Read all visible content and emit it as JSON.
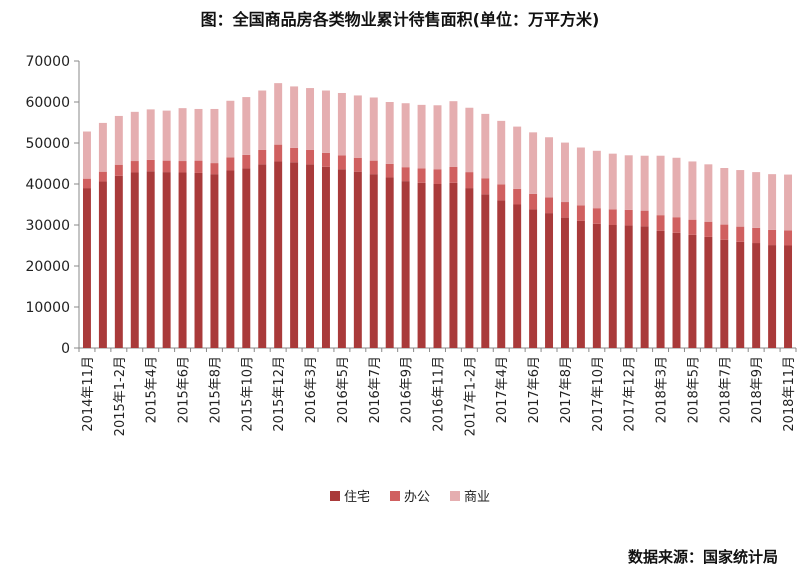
{
  "chart_data": {
    "type": "bar",
    "stacked": true,
    "title": "图：全国商品房各类物业累计待售面积(单位：万平方米)",
    "source": "数据来源：国家统计局",
    "ylim": [
      0,
      70000
    ],
    "yticks": [
      0,
      10000,
      20000,
      30000,
      40000,
      50000,
      60000,
      70000
    ],
    "xticks": [
      "2014年11月",
      "2015年1-2月",
      "2015年4月",
      "2015年6月",
      "2015年8月",
      "2015年10月",
      "2015年12月",
      "2016年3月",
      "2016年5月",
      "2016年7月",
      "2016年9月",
      "2016年11月",
      "2017年1-2月",
      "2017年4月",
      "2017年6月",
      "2017年8月",
      "2017年10月",
      "2017年12月",
      "2018年3月",
      "2018年5月",
      "2018年7月",
      "2018年9月",
      "2018年11月"
    ],
    "grid": false,
    "legend_position": "bottom",
    "categories": [
      "2014年11月",
      "2014年12月",
      "2015年1-2月",
      "2015年3月",
      "2015年4月",
      "2015年5月",
      "2015年6月",
      "2015年7月",
      "2015年8月",
      "2015年9月",
      "2015年10月",
      "2015年11月",
      "2015年12月",
      "2016年1-2月",
      "2016年3月",
      "2016年4月",
      "2016年5月",
      "2016年6月",
      "2016年7月",
      "2016年8月",
      "2016年9月",
      "2016年10月",
      "2016年11月",
      "2016年12月",
      "2017年1-2月",
      "2017年3月",
      "2017年4月",
      "2017年5月",
      "2017年6月",
      "2017年7月",
      "2017年8月",
      "2017年9月",
      "2017年10月",
      "2017年11月",
      "2017年12月",
      "2018年1-2月",
      "2018年3月",
      "2018年4月",
      "2018年5月",
      "2018年6月",
      "2018年7月",
      "2018年8月",
      "2018年9月",
      "2018年10月",
      "2018年11月"
    ],
    "series": [
      {
        "name": "住宅",
        "color": "#a93a3a",
        "values": [
          39000,
          40600,
          42000,
          42800,
          43100,
          42900,
          42800,
          42700,
          42400,
          43300,
          43800,
          44800,
          45500,
          45300,
          44800,
          44200,
          43600,
          43000,
          42400,
          41600,
          40700,
          40300,
          40000,
          40300,
          39000,
          37500,
          36000,
          35000,
          33800,
          32900,
          31800,
          31000,
          30300,
          30000,
          29900,
          29700,
          28600,
          28100,
          27600,
          27100,
          26400,
          25900,
          25600,
          25100,
          25000
        ]
      },
      {
        "name": "办公",
        "color": "#d06060",
        "values": [
          2300,
          2400,
          2700,
          2800,
          2800,
          2800,
          2800,
          3000,
          2700,
          3200,
          3300,
          3500,
          4100,
          3500,
          3500,
          3400,
          3400,
          3400,
          3300,
          3300,
          3400,
          3500,
          3600,
          3900,
          3900,
          3900,
          3900,
          3800,
          3800,
          3800,
          3800,
          3800,
          3800,
          3800,
          3800,
          3800,
          3800,
          3800,
          3700,
          3700,
          3700,
          3700,
          3700,
          3700,
          3700
        ]
      },
      {
        "name": "商业",
        "color": "#e5aeb0",
        "values": [
          11500,
          11900,
          11900,
          12000,
          12300,
          12200,
          12900,
          12600,
          13200,
          13800,
          14100,
          14500,
          15000,
          15000,
          15100,
          15200,
          15200,
          15200,
          15400,
          15100,
          15600,
          15500,
          15600,
          16000,
          15700,
          15700,
          15500,
          15200,
          15000,
          14700,
          14500,
          14100,
          14000,
          13600,
          13300,
          13400,
          14500,
          14500,
          14200,
          14000,
          13800,
          13800,
          13600,
          13600,
          13600
        ]
      }
    ]
  }
}
